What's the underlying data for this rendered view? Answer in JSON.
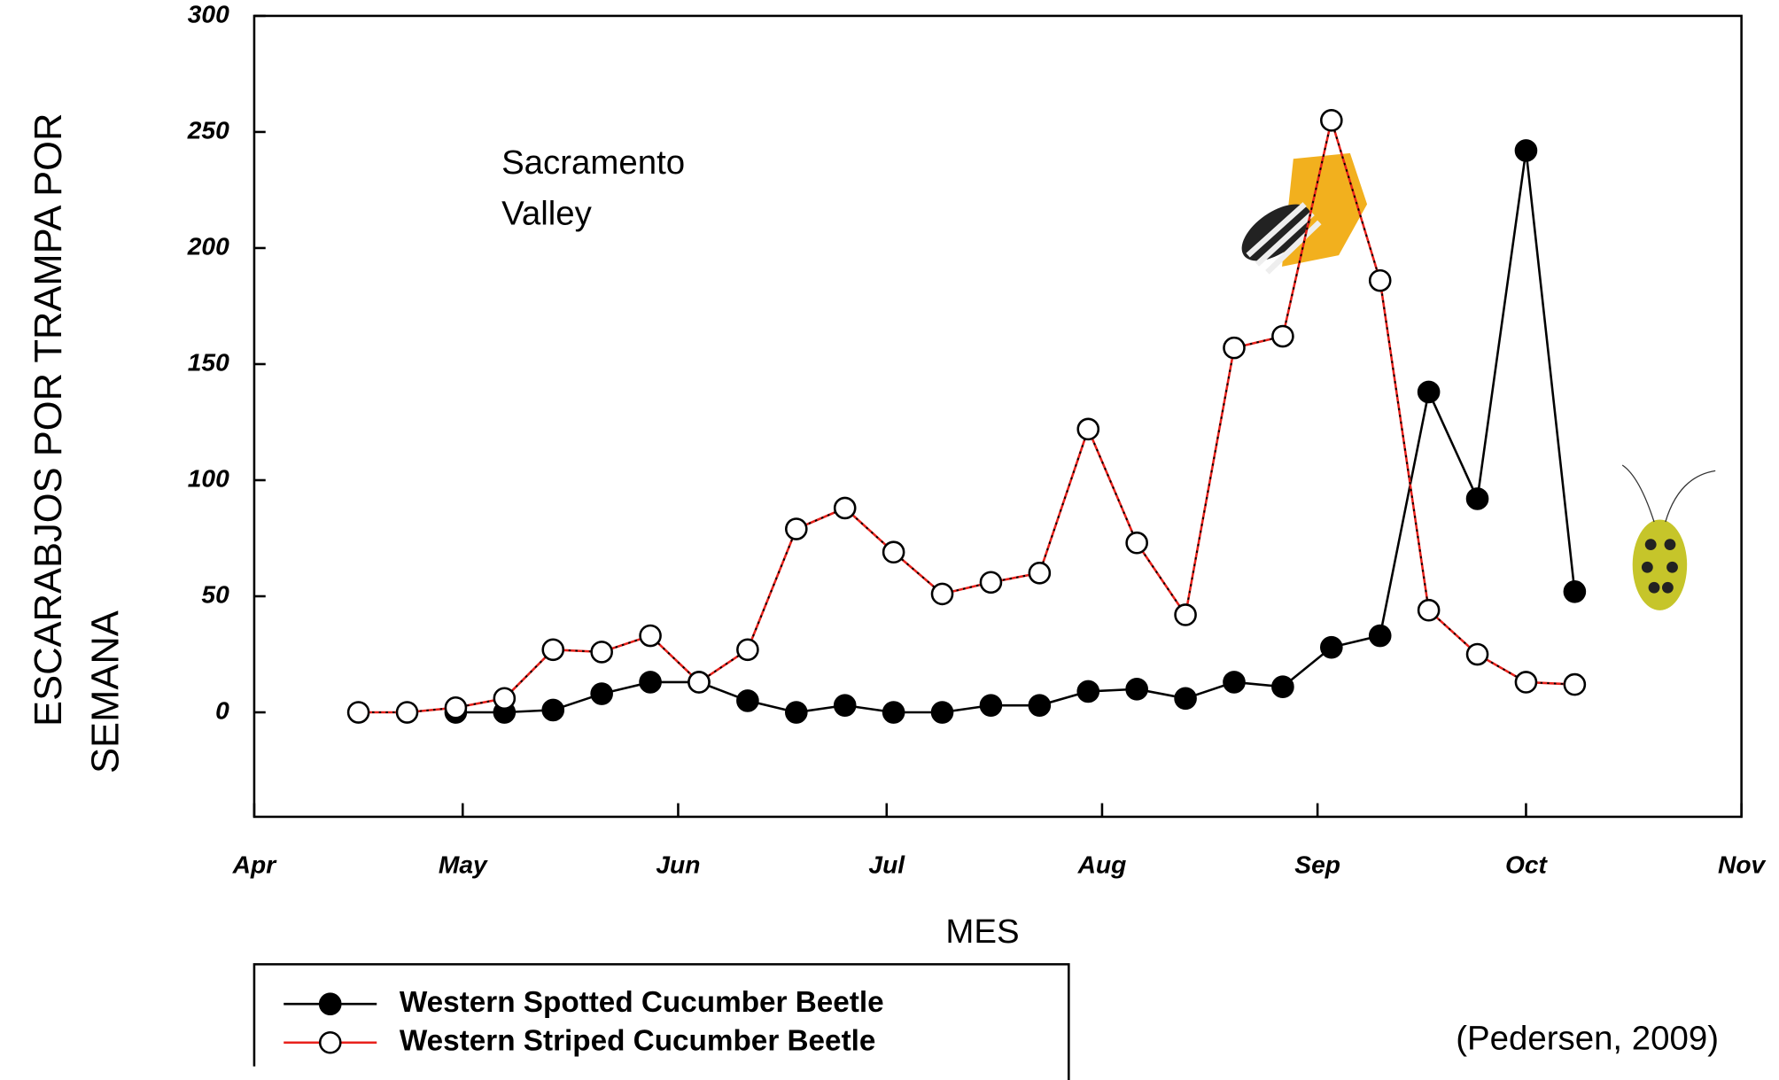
{
  "chart_data": {
    "type": "line",
    "y_label": [
      "ESCARABJOS POR TRAMPA POR",
      "SEMANA"
    ],
    "x_label": "MES",
    "annotation": [
      "Sacramento",
      "Valley"
    ],
    "citation": "(Pedersen, 2009)",
    "x": [
      15,
      22,
      29,
      36,
      43,
      50,
      57,
      64,
      71,
      78,
      85,
      92,
      99,
      106,
      113,
      120,
      127,
      134,
      141,
      148,
      155,
      162,
      169,
      176,
      183,
      190
    ],
    "xlim": [
      0,
      214
    ],
    "xticks": [
      {
        "value": 0,
        "label": "Apr"
      },
      {
        "value": 30,
        "label": "May"
      },
      {
        "value": 61,
        "label": "Jun"
      },
      {
        "value": 91,
        "label": "Jul"
      },
      {
        "value": 122,
        "label": "Aug"
      },
      {
        "value": 153,
        "label": "Sep"
      },
      {
        "value": 183,
        "label": "Oct"
      },
      {
        "value": 214,
        "label": "Nov"
      }
    ],
    "ylim": [
      -45,
      300
    ],
    "yticks": [
      0,
      50,
      100,
      150,
      200,
      250,
      300
    ],
    "series": [
      {
        "name": "Western Spotted Cucumber Beetle",
        "color": "#000000",
        "marker": "filled",
        "values": [
          null,
          null,
          0,
          0,
          1,
          8,
          13,
          13,
          5,
          0,
          3,
          0,
          0,
          3,
          3,
          9,
          10,
          6,
          13,
          11,
          28,
          33,
          138,
          92,
          242,
          52
        ]
      },
      {
        "name": "Western Striped Cucumber Beetle",
        "color": "#e8211b",
        "marker": "open",
        "values": [
          0,
          0,
          2,
          6,
          27,
          26,
          33,
          13,
          27,
          79,
          88,
          69,
          51,
          56,
          60,
          122,
          73,
          42,
          157,
          162,
          255,
          186,
          44,
          25,
          13,
          12
        ]
      }
    ]
  }
}
